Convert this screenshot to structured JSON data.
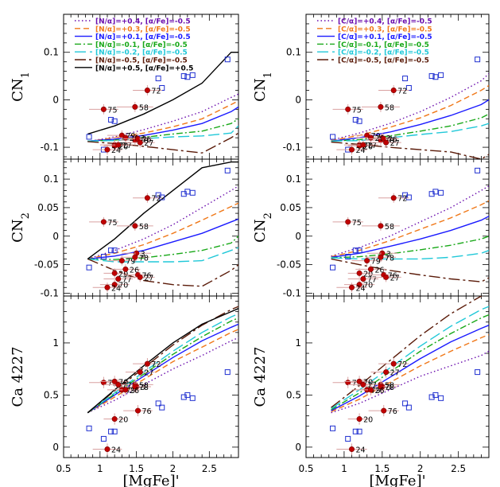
{
  "colors": {
    "frame": "#000000",
    "star_fill": "#c00000",
    "star_edge": "#7a0000",
    "errbar": "#d9a0a0",
    "obs_square": "#1f2fd0"
  },
  "chart_data": {
    "type": "line",
    "xlabel": "[MgFe]'",
    "xlim": [
      0.5,
      2.9
    ],
    "xticks": [
      0.5,
      1,
      1.5,
      2,
      2.5
    ],
    "xtick_labels": [
      "0.5",
      "1",
      "1.5",
      "2",
      "2.5"
    ],
    "columns": [
      {
        "legend": [
          {
            "label": "[N/α]=+0.4, [α/Fe]=-0.5",
            "color": "#6a0dad",
            "dash": "dot"
          },
          {
            "label": "[N/α]=+0.3, [α/Fe]=-0.5",
            "color": "#f07818",
            "dash": "dash"
          },
          {
            "label": "[N/α]=+0.1, [α/Fe]=-0.5",
            "color": "#1a1aff",
            "dash": "solid"
          },
          {
            "label": "[N/α]=-0.1, [α/Fe]=-0.5",
            "color": "#18a818",
            "dash": "dashdot"
          },
          {
            "label": "[N/α]=-0.2, [α/Fe]=-0.5",
            "color": "#20c8d8",
            "dash": "longdash"
          },
          {
            "label": "[N/α]=-0.5, [α/Fe]=-0.5",
            "color": "#5a1a08",
            "dash": "longdashdot"
          },
          {
            "label": "[N/α]=+0.5, [α/Fe]=+0.5",
            "color": "#000000",
            "dash": "solid"
          }
        ],
        "panels": [
          {
            "ylabel": "CN1",
            "ylim": [
              -0.125,
              0.18
            ],
            "yticks": [
              -0.1,
              0,
              0.1
            ],
            "ytick_labels": [
              "-0.1",
              "0",
              "0.1"
            ],
            "x": [
              0.83,
              1.2,
              1.6,
              2.0,
              2.4,
              2.8,
              2.9
            ],
            "series": [
              [
                -0.088,
                -0.078,
                -0.063,
                -0.045,
                -0.025,
                0.005,
                0.012
              ],
              [
                -0.088,
                -0.08,
                -0.07,
                -0.057,
                -0.04,
                -0.01,
                -0.002
              ],
              [
                -0.087,
                -0.083,
                -0.075,
                -0.064,
                -0.05,
                -0.025,
                -0.015
              ],
              [
                -0.087,
                -0.085,
                -0.079,
                -0.072,
                -0.066,
                -0.05,
                -0.04
              ],
              [
                -0.087,
                -0.086,
                -0.082,
                -0.078,
                -0.076,
                -0.07,
                -0.055
              ],
              [
                -0.088,
                -0.092,
                -0.098,
                -0.105,
                -0.112,
                -0.08,
                -0.07
              ],
              [
                -0.072,
                -0.055,
                -0.03,
                0.0,
                0.035,
                0.1,
                0.1
              ]
            ]
          },
          {
            "ylabel": "CN2",
            "ylim": [
              -0.105,
              0.135
            ],
            "yticks": [
              -0.1,
              -0.05,
              0,
              0.05,
              0.1
            ],
            "ytick_labels": [
              "-0.1",
              "-0.05",
              "0",
              "0.05",
              "0.1"
            ],
            "x": [
              0.83,
              1.2,
              1.6,
              2.0,
              2.4,
              2.8,
              2.9
            ],
            "series": [
              [
                -0.04,
                -0.025,
                -0.005,
                0.02,
                0.05,
                0.08,
                0.088
              ],
              [
                -0.04,
                -0.03,
                -0.015,
                0.005,
                0.028,
                0.052,
                0.058
              ],
              [
                -0.04,
                -0.035,
                -0.025,
                -0.01,
                0.005,
                0.025,
                0.03
              ],
              [
                -0.04,
                -0.041,
                -0.038,
                -0.032,
                -0.025,
                -0.012,
                0.0
              ],
              [
                -0.04,
                -0.045,
                -0.045,
                -0.045,
                -0.043,
                -0.025,
                -0.02
              ],
              [
                -0.04,
                -0.06,
                -0.078,
                -0.085,
                -0.088,
                -0.06,
                -0.05
              ],
              [
                -0.04,
                -0.005,
                0.04,
                0.08,
                0.12,
                0.13,
                0.13
              ]
            ]
          },
          {
            "ylabel": "Ca 4227",
            "ylim": [
              -0.1,
              1.45
            ],
            "yticks": [
              0,
              0.5,
              1
            ],
            "ytick_labels": [
              "0",
              "0.5",
              "1"
            ],
            "x": [
              0.83,
              1.2,
              1.6,
              2.0,
              2.4,
              2.8,
              2.9
            ],
            "series": [
              [
                0.33,
                0.45,
                0.6,
                0.75,
                0.88,
                1.02,
                1.05
              ],
              [
                0.33,
                0.48,
                0.65,
                0.82,
                0.96,
                1.1,
                1.13
              ],
              [
                0.33,
                0.5,
                0.68,
                0.86,
                1.02,
                1.15,
                1.18
              ],
              [
                0.33,
                0.51,
                0.7,
                0.89,
                1.06,
                1.21,
                1.24
              ],
              [
                0.33,
                0.52,
                0.72,
                0.92,
                1.1,
                1.25,
                1.28
              ],
              [
                0.33,
                0.54,
                0.76,
                0.98,
                1.17,
                1.32,
                1.35
              ],
              [
                0.33,
                0.55,
                0.78,
                1.0,
                1.18,
                1.3,
                1.33
              ]
            ]
          }
        ]
      },
      {
        "legend": [
          {
            "label": "[C/α]=+0.4, [α/Fe]=-0.5",
            "color": "#6a0dad",
            "dash": "dot"
          },
          {
            "label": "[C/α]=+0.3, [α/Fe]=-0.5",
            "color": "#f07818",
            "dash": "dash"
          },
          {
            "label": "[C/α]=+0.1, [α/Fe]=-0.5",
            "color": "#1a1aff",
            "dash": "solid"
          },
          {
            "label": "[C/α]=-0.1, [α/Fe]=-0.5",
            "color": "#18a818",
            "dash": "dashdot"
          },
          {
            "label": "[C/α]=-0.2, [α/Fe]=-0.5",
            "color": "#20c8d8",
            "dash": "longdash"
          },
          {
            "label": "[C/α]=-0.5, [α/Fe]=-0.5",
            "color": "#5a1a08",
            "dash": "longdashdot"
          }
        ],
        "panels": [
          {
            "ylabel": "CN1",
            "ylim": [
              -0.125,
              0.18
            ],
            "yticks": [
              -0.1,
              0,
              0.1
            ],
            "ytick_labels": [
              "-0.1",
              "0",
              "0.1"
            ],
            "x": [
              0.83,
              1.2,
              1.6,
              2.0,
              2.4,
              2.8,
              2.9
            ],
            "series": [
              [
                -0.085,
                -0.07,
                -0.05,
                -0.025,
                0.005,
                0.04,
                0.055
              ],
              [
                -0.086,
                -0.075,
                -0.058,
                -0.038,
                -0.012,
                0.02,
                0.03
              ],
              [
                -0.087,
                -0.08,
                -0.068,
                -0.052,
                -0.033,
                -0.01,
                0.0
              ],
              [
                -0.087,
                -0.084,
                -0.076,
                -0.066,
                -0.055,
                -0.038,
                -0.03
              ],
              [
                -0.087,
                -0.086,
                -0.08,
                -0.073,
                -0.067,
                -0.055,
                -0.05
              ],
              [
                -0.089,
                -0.094,
                -0.1,
                -0.105,
                -0.11,
                -0.125,
                -0.115
              ]
            ]
          },
          {
            "ylabel": "CN2",
            "ylim": [
              -0.105,
              0.135
            ],
            "yticks": [
              -0.1,
              -0.05,
              0,
              0.05,
              0.1
            ],
            "ytick_labels": [
              "-0.1",
              "-0.05",
              "0",
              "0.05",
              "0.1"
            ],
            "x": [
              0.83,
              1.2,
              1.6,
              2.0,
              2.4,
              2.8,
              2.9
            ],
            "series": [
              [
                -0.035,
                -0.02,
                0.0,
                0.025,
                0.05,
                0.08,
                0.088
              ],
              [
                -0.036,
                -0.025,
                -0.008,
                0.012,
                0.032,
                0.055,
                0.062
              ],
              [
                -0.037,
                -0.03,
                -0.018,
                -0.005,
                0.01,
                0.028,
                0.035
              ],
              [
                -0.038,
                -0.036,
                -0.031,
                -0.024,
                -0.016,
                -0.005,
                0.0
              ],
              [
                -0.038,
                -0.04,
                -0.04,
                -0.04,
                -0.037,
                -0.03,
                -0.025
              ],
              [
                -0.04,
                -0.05,
                -0.06,
                -0.068,
                -0.075,
                -0.08,
                -0.073
              ]
            ]
          },
          {
            "ylabel": "Ca 4227",
            "ylim": [
              -0.1,
              1.45
            ],
            "yticks": [
              0,
              0.5,
              1
            ],
            "ytick_labels": [
              "0",
              "0.5",
              "1"
            ],
            "x": [
              0.83,
              1.2,
              1.6,
              2.0,
              2.4,
              2.8,
              2.9
            ],
            "series": [
              [
                0.33,
                0.42,
                0.55,
                0.68,
                0.78,
                0.88,
                0.92
              ],
              [
                0.34,
                0.46,
                0.62,
                0.78,
                0.92,
                1.05,
                1.08
              ],
              [
                0.35,
                0.49,
                0.67,
                0.85,
                1.01,
                1.14,
                1.17
              ],
              [
                0.36,
                0.52,
                0.72,
                0.92,
                1.09,
                1.24,
                1.27
              ],
              [
                0.37,
                0.55,
                0.76,
                0.97,
                1.16,
                1.32,
                1.35
              ],
              [
                0.38,
                0.59,
                0.83,
                1.07,
                1.28,
                1.45,
                1.48
              ]
            ]
          }
        ]
      }
    ],
    "observed_squares": {
      "x": [
        0.85,
        1.15,
        1.2,
        1.05,
        1.8,
        2.2,
        2.15,
        2.27,
        1.85,
        2.75
      ],
      "cn1": [
        -0.078,
        -0.042,
        -0.045,
        -0.105,
        0.045,
        0.048,
        0.05,
        0.052,
        0.025,
        0.085
      ],
      "cn2": [
        -0.055,
        -0.025,
        -0.025,
        -0.036,
        0.072,
        0.078,
        0.074,
        0.076,
        0.068,
        0.115
      ],
      "ca": [
        0.18,
        0.15,
        0.15,
        0.08,
        0.42,
        0.5,
        0.48,
        0.47,
        0.38,
        0.72
      ]
    },
    "globular_clusters": {
      "labels": [
        "75",
        "58",
        "72",
        "79",
        "3",
        "78",
        "70",
        "20",
        "77",
        "24",
        "26",
        "76",
        "27"
      ],
      "x": [
        1.05,
        1.48,
        1.65,
        1.3,
        1.5,
        1.48,
        1.2,
        1.2,
        1.25,
        1.1,
        1.35,
        1.52,
        1.55
      ],
      "cn1": [
        -0.02,
        -0.015,
        0.02,
        -0.075,
        -0.08,
        -0.085,
        -0.095,
        -0.097,
        -0.095,
        -0.105,
        -0.08,
        -0.082,
        -0.09
      ],
      "cn2": [
        0.025,
        0.018,
        0.067,
        -0.043,
        -0.03,
        -0.037,
        -0.085,
        -0.065,
        -0.075,
        -0.09,
        -0.058,
        -0.068,
        -0.072
      ],
      "ca": [
        0.62,
        0.6,
        0.8,
        0.55,
        0.58,
        0.58,
        0.63,
        0.27,
        0.6,
        -0.02,
        0.55,
        0.35,
        0.72
      ],
      "xerr": [
        0.2,
        0.25,
        0.2,
        0.2,
        0.2,
        0.2,
        0.2,
        0.15,
        0.2,
        0.2,
        0.2,
        0.2,
        0.2
      ]
    }
  }
}
